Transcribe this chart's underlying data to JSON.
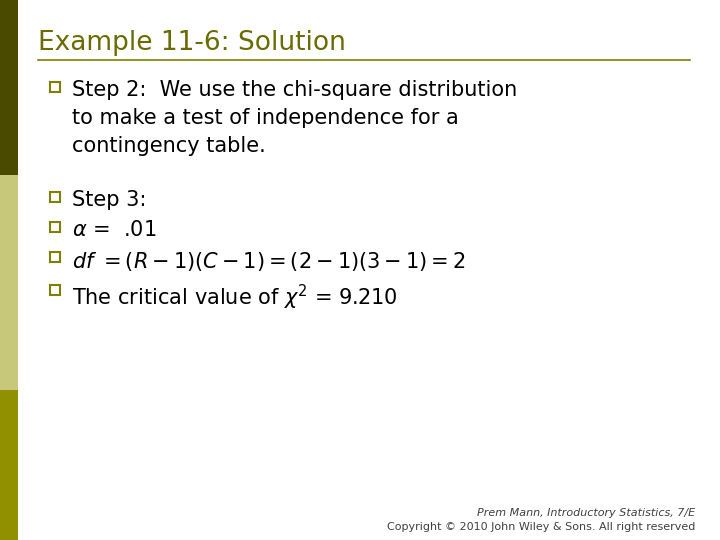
{
  "title": "Example 11-6: Solution",
  "title_color": "#6B6B00",
  "title_fontsize": 19,
  "background_color": "#FFFFFF",
  "line_color": "#808000",
  "bullet_color": "#808000",
  "text_color": "#000000",
  "sidebar_top_color": "#4A4A00",
  "sidebar_mid_color": "#C8C87A",
  "sidebar_bot_color": "#909000",
  "step2_line1": "Step 2:  We use the chi-square distribution",
  "step2_line2": "to make a test of independence for a",
  "step2_line3": "contingency table.",
  "step3_label": "Step 3:",
  "footer_line1": "Prem Mann, Introductory Statistics, 7/E",
  "footer_line2": "Copyright © 2010 John Wiley & Sons. All right reserved",
  "footer_color": "#404040",
  "footer_fontsize": 8,
  "main_fontsize": 15
}
